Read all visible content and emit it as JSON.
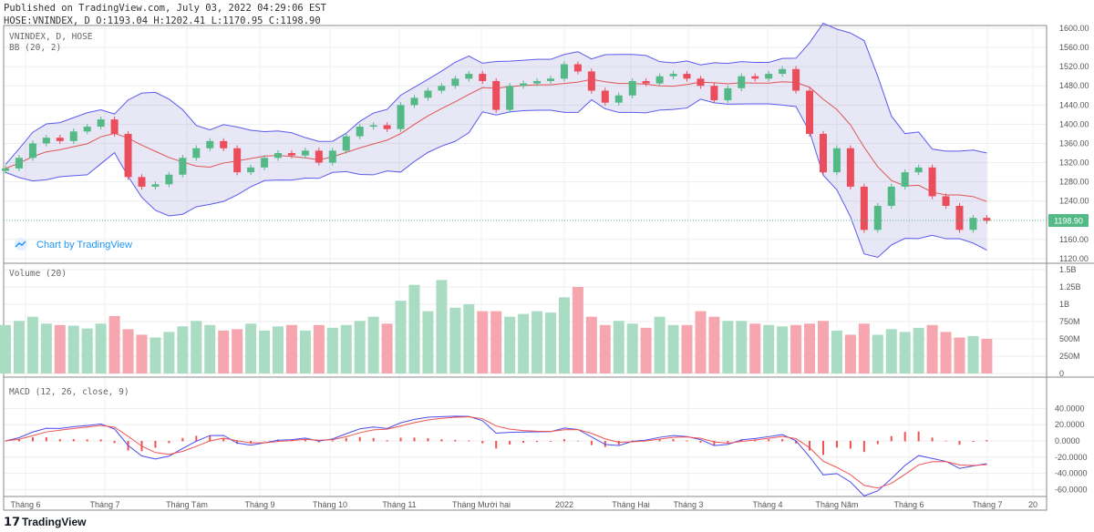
{
  "header": {
    "published": "Published on TradingView.com, July 03, 2022 04:29:06 EST",
    "ohlc": "HOSE:VNINDEX, D O:1193.04 H:1202.41 L:1170.95 C:1198.90"
  },
  "panels": {
    "symbol": "VNINDEX, D, HOSE",
    "bb": "BB (20, 2)",
    "volume": "Volume (20)",
    "macd": "MACD (12, 26, close, 9)",
    "watermark": "Chart by TradingView",
    "last_price": "1198.90"
  },
  "footer": {
    "logo": "TradingView"
  },
  "chart_data": {
    "type": "candlestick",
    "title": "VNINDEX, D, HOSE",
    "last_close": 1198.9,
    "price_ticks": [
      "1600.00",
      "1560.00",
      "1520.00",
      "1480.00",
      "1440.00",
      "1400.00",
      "1360.00",
      "1320.00",
      "1280.00",
      "1240.00",
      "1160.00",
      "1120.00"
    ],
    "ylim": [
      1120,
      1600
    ],
    "volume_ticks": [
      "1.5B",
      "1.25B",
      "1B",
      "750M",
      "500M",
      "250M",
      "0"
    ],
    "volume_ylim": [
      0,
      1500
    ],
    "macd_ticks": [
      "40.0000",
      "20.0000",
      "0.0000",
      "-20.0000",
      "-40.0000",
      "-60.0000"
    ],
    "macd_ylim": [
      -60,
      40
    ],
    "x_labels": [
      "Tháng 6",
      "Tháng 7",
      "Tháng Tám",
      "Tháng 9",
      "Tháng 10",
      "Tháng 11",
      "Tháng Mười hai",
      "2022",
      "Tháng Hai",
      "Tháng 3",
      "Tháng 4",
      "Tháng Năm",
      "Tháng 6",
      "Tháng 7",
      "20"
    ],
    "closes": [
      1308,
      1330,
      1360,
      1372,
      1365,
      1385,
      1395,
      1410,
      1380,
      1290,
      1270,
      1275,
      1295,
      1330,
      1350,
      1365,
      1350,
      1300,
      1310,
      1330,
      1340,
      1335,
      1345,
      1320,
      1345,
      1375,
      1395,
      1398,
      1390,
      1440,
      1455,
      1470,
      1480,
      1495,
      1505,
      1490,
      1430,
      1480,
      1485,
      1490,
      1495,
      1525,
      1510,
      1470,
      1445,
      1460,
      1490,
      1485,
      1500,
      1505,
      1495,
      1480,
      1450,
      1475,
      1500,
      1495,
      1505,
      1515,
      1470,
      1380,
      1300,
      1350,
      1270,
      1180,
      1230,
      1270,
      1300,
      1310,
      1250,
      1230,
      1180,
      1205,
      1198.9
    ],
    "volumes_m": [
      700,
      760,
      820,
      720,
      700,
      690,
      650,
      720,
      830,
      640,
      560,
      520,
      600,
      680,
      760,
      700,
      620,
      640,
      720,
      620,
      680,
      700,
      620,
      700,
      660,
      700,
      760,
      820,
      720,
      1050,
      1280,
      900,
      1350,
      950,
      1000,
      900,
      900,
      820,
      860,
      900,
      880,
      1100,
      1250,
      820,
      700,
      760,
      720,
      660,
      820,
      700,
      700,
      900,
      820,
      760,
      760,
      720,
      700,
      680,
      700,
      720,
      760,
      620,
      560,
      720,
      560,
      640,
      600,
      660,
      700,
      600,
      520,
      540,
      500
    ]
  }
}
